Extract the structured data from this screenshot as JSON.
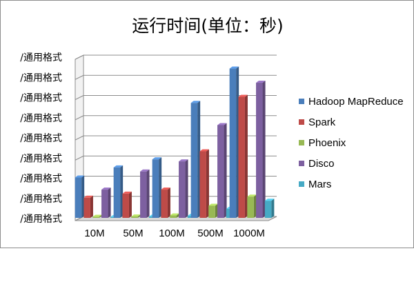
{
  "chart_data": {
    "type": "bar",
    "style": "3d-clustered-column",
    "title": "运行时间(单位：秒)",
    "xlabel": "",
    "ylabel": "",
    "categories": [
      "10M",
      "50M",
      "100M",
      "500M",
      "1000M"
    ],
    "y_tick_labels": [
      "/通用格式",
      "/通用格式",
      "/通用格式",
      "/通用格式",
      "/通用格式",
      "/通用格式",
      "/通用格式",
      "/通用格式",
      "/通用格式"
    ],
    "y_tick_values": [
      0,
      1,
      2,
      3,
      4,
      5,
      6,
      7,
      8
    ],
    "ylim": [
      0,
      8
    ],
    "series": [
      {
        "name": "Hadoop MapReduce",
        "color": "#4a7ebb",
        "values": [
          2.0,
          2.5,
          2.9,
          5.7,
          7.4
        ]
      },
      {
        "name": "Spark",
        "color": "#be4b48",
        "values": [
          1.0,
          1.2,
          1.4,
          3.3,
          6.0
        ]
      },
      {
        "name": "Phoenix",
        "color": "#98b954",
        "values": [
          0.05,
          0.07,
          0.12,
          0.6,
          1.05
        ]
      },
      {
        "name": "Disco",
        "color": "#7d60a0",
        "values": [
          1.4,
          2.3,
          2.8,
          4.6,
          6.7
        ]
      },
      {
        "name": "Mars",
        "color": "#46aac5",
        "values": [
          0.04,
          0.06,
          0.1,
          0.45,
          0.85
        ]
      }
    ],
    "grid": true,
    "legend_position": "right"
  }
}
